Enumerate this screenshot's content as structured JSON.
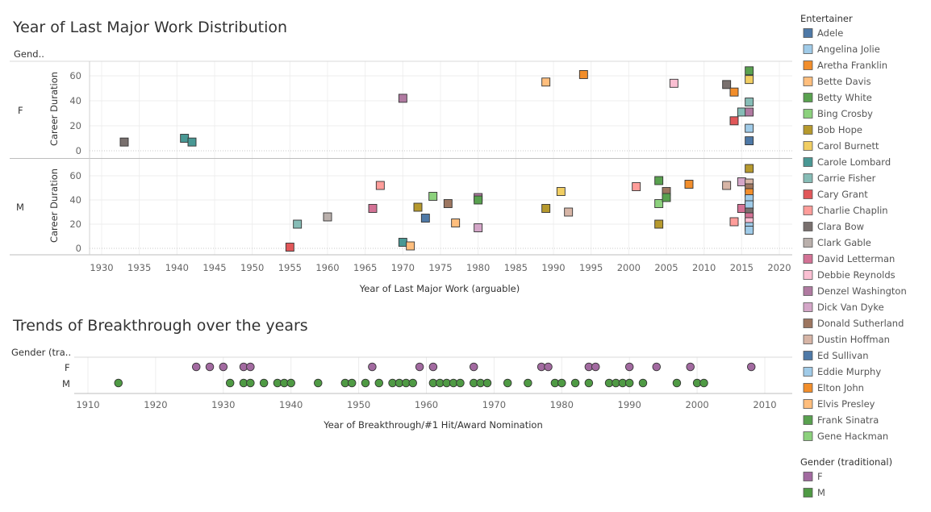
{
  "colors": {
    "Adele": "#4e79a7",
    "Angelina Jolie": "#a0cbe8",
    "Aretha Franklin": "#f28e2b",
    "Bette Davis": "#ffbe7d",
    "Betty White": "#59a14f",
    "Bing Crosby": "#8cd17d",
    "Bob Hope": "#b6992d",
    "Carol Burnett": "#f1ce63",
    "Carole Lombard": "#499894",
    "Carrie Fisher": "#86bcb6",
    "Cary Grant": "#e15759",
    "Charlie Chaplin": "#ff9d9a",
    "Clara Bow": "#79706e",
    "Clark Gable": "#bab0ac",
    "David Letterman": "#d37295",
    "Debbie Reynolds": "#fabfd2",
    "Denzel Washington": "#b07aa1",
    "Dick Van Dyke": "#d4a6c8",
    "Donald Sutherland": "#9d7660",
    "Dustin Hoffman": "#d7b5a6",
    "Ed Sullivan": "#4e79a7",
    "Eddie Murphy": "#a0cbe8",
    "Elton John": "#f28e2b",
    "Elvis Presley": "#ffbe7d",
    "Frank Sinatra": "#59a14f",
    "Gene Hackman": "#8cd17d",
    "gender_F": "#a26aa0",
    "gender_M": "#4f9a44"
  },
  "chart_data": [
    {
      "type": "scatter",
      "title": "Year of Last Major Work Distribution",
      "row_header": "Gend..",
      "xlabel": "Year of Last Major Work (arguable)",
      "ylabel": "Career Duration",
      "xlim": [
        1927,
        2022
      ],
      "x_ticks": [
        1930,
        1935,
        1940,
        1945,
        1950,
        1955,
        1960,
        1965,
        1970,
        1975,
        1980,
        1985,
        1990,
        1995,
        2000,
        2005,
        2010,
        2015,
        2020
      ],
      "y_ticks": [
        0,
        20,
        40,
        60
      ],
      "ylim": [
        -3,
        72
      ],
      "grid": true,
      "panels": [
        {
          "label": "F",
          "points": [
            {
              "x": 1933,
              "y": 7,
              "c": "Clara Bow"
            },
            {
              "x": 1941,
              "y": 10,
              "c": "Carole Lombard"
            },
            {
              "x": 1942,
              "y": 7,
              "c": "Carole Lombard"
            },
            {
              "x": 1970,
              "y": 42,
              "c": "Denzel Washington"
            },
            {
              "x": 1989,
              "y": 55,
              "c": "Bette Davis"
            },
            {
              "x": 1994,
              "y": 61,
              "c": "Aretha Franklin"
            },
            {
              "x": 2006,
              "y": 54,
              "c": "Debbie Reynolds"
            },
            {
              "x": 2013,
              "y": 53,
              "c": "Clara Bow"
            },
            {
              "x": 2014,
              "y": 47,
              "c": "Aretha Franklin"
            },
            {
              "x": 2014,
              "y": 24,
              "c": "Cary Grant"
            },
            {
              "x": 2015,
              "y": 31,
              "c": "Carrie Fisher"
            },
            {
              "x": 2016,
              "y": 64,
              "c": "Betty White"
            },
            {
              "x": 2016,
              "y": 57,
              "c": "Carol Burnett"
            },
            {
              "x": 2016,
              "y": 39,
              "c": "Carrie Fisher"
            },
            {
              "x": 2016,
              "y": 31,
              "c": "Denzel Washington"
            },
            {
              "x": 2016,
              "y": 18,
              "c": "Angelina Jolie"
            },
            {
              "x": 2016,
              "y": 8,
              "c": "Adele"
            }
          ]
        },
        {
          "label": "M",
          "points": [
            {
              "x": 1955,
              "y": 1,
              "c": "Cary Grant"
            },
            {
              "x": 1956,
              "y": 20,
              "c": "Carrie Fisher"
            },
            {
              "x": 1960,
              "y": 26,
              "c": "Clark Gable"
            },
            {
              "x": 1966,
              "y": 33,
              "c": "David Letterman"
            },
            {
              "x": 1967,
              "y": 52,
              "c": "Charlie Chaplin"
            },
            {
              "x": 1970,
              "y": 5,
              "c": "Carole Lombard"
            },
            {
              "x": 1971,
              "y": 2,
              "c": "Elvis Presley"
            },
            {
              "x": 1972,
              "y": 34,
              "c": "Bob Hope"
            },
            {
              "x": 1973,
              "y": 25,
              "c": "Ed Sullivan"
            },
            {
              "x": 1974,
              "y": 43,
              "c": "Gene Hackman"
            },
            {
              "x": 1976,
              "y": 37,
              "c": "Donald Sutherland"
            },
            {
              "x": 1977,
              "y": 21,
              "c": "Elvis Presley"
            },
            {
              "x": 1980,
              "y": 42,
              "c": "Denzel Washington"
            },
            {
              "x": 1980,
              "y": 40,
              "c": "Frank Sinatra"
            },
            {
              "x": 1980,
              "y": 17,
              "c": "Dick Van Dyke"
            },
            {
              "x": 1989,
              "y": 33,
              "c": "Bob Hope"
            },
            {
              "x": 1991,
              "y": 47,
              "c": "Carol Burnett"
            },
            {
              "x": 1992,
              "y": 30,
              "c": "Dustin Hoffman"
            },
            {
              "x": 2001,
              "y": 51,
              "c": "Charlie Chaplin"
            },
            {
              "x": 2004,
              "y": 56,
              "c": "Frank Sinatra"
            },
            {
              "x": 2004,
              "y": 37,
              "c": "Gene Hackman"
            },
            {
              "x": 2004,
              "y": 20,
              "c": "Bob Hope"
            },
            {
              "x": 2005,
              "y": 47,
              "c": "Donald Sutherland"
            },
            {
              "x": 2005,
              "y": 42,
              "c": "Frank Sinatra"
            },
            {
              "x": 2008,
              "y": 53,
              "c": "Aretha Franklin"
            },
            {
              "x": 2013,
              "y": 52,
              "c": "Dustin Hoffman"
            },
            {
              "x": 2014,
              "y": 22,
              "c": "Charlie Chaplin"
            },
            {
              "x": 2015,
              "y": 55,
              "c": "Dick Van Dyke"
            },
            {
              "x": 2015,
              "y": 33,
              "c": "David Letterman"
            },
            {
              "x": 2016,
              "y": 66,
              "c": "Bob Hope"
            },
            {
              "x": 2016,
              "y": 54,
              "c": "Dustin Hoffman"
            },
            {
              "x": 2016,
              "y": 50,
              "c": "Donald Sutherland"
            },
            {
              "x": 2016,
              "y": 46,
              "c": "Elton John"
            },
            {
              "x": 2016,
              "y": 41,
              "c": "Eddie Murphy"
            },
            {
              "x": 2016,
              "y": 36,
              "c": "Eddie Murphy"
            },
            {
              "x": 2016,
              "y": 30,
              "c": "Clara Bow"
            },
            {
              "x": 2016,
              "y": 26,
              "c": "David Letterman"
            },
            {
              "x": 2016,
              "y": 22,
              "c": "Debbie Reynolds"
            },
            {
              "x": 2016,
              "y": 18,
              "c": "Eddie Murphy"
            },
            {
              "x": 2016,
              "y": 15,
              "c": "Angelina Jolie"
            }
          ]
        }
      ]
    },
    {
      "type": "scatter",
      "title": "Trends of Breakthrough over the years",
      "row_header": "Gender (tra..",
      "xlabel": "Year of Breakthrough/#1 Hit/Award Nomination",
      "xlim": [
        1908,
        2012
      ],
      "x_ticks": [
        1910,
        1920,
        1930,
        1940,
        1950,
        1960,
        1970,
        1980,
        1990,
        2000,
        2010
      ],
      "grid": true,
      "rows": [
        {
          "label": "F",
          "x": [
            1926,
            1928,
            1930,
            1933,
            1934,
            1952,
            1959,
            1961,
            1967,
            1977,
            1978,
            1984,
            1985,
            1990,
            1994,
            1999,
            2008
          ]
        },
        {
          "label": "M",
          "x": [
            1914.5,
            1931,
            1933,
            1934,
            1936,
            1938,
            1939,
            1940,
            1944,
            1948,
            1949,
            1951,
            1953,
            1955,
            1956,
            1957,
            1958,
            1961,
            1962,
            1963,
            1964,
            1965,
            1967,
            1968,
            1969,
            1972,
            1975,
            1979,
            1980,
            1982,
            1984,
            1987,
            1988,
            1989,
            1990,
            1992,
            1997,
            2000,
            2001
          ]
        }
      ]
    }
  ],
  "legend": {
    "title": "Entertainer",
    "items": [
      "Adele",
      "Angelina Jolie",
      "Aretha Franklin",
      "Bette Davis",
      "Betty White",
      "Bing Crosby",
      "Bob Hope",
      "Carol Burnett",
      "Carole Lombard",
      "Carrie Fisher",
      "Cary Grant",
      "Charlie Chaplin",
      "Clara Bow",
      "Clark Gable",
      "David Letterman",
      "Debbie Reynolds",
      "Denzel Washington",
      "Dick Van Dyke",
      "Donald Sutherland",
      "Dustin Hoffman",
      "Ed Sullivan",
      "Eddie Murphy",
      "Elton John",
      "Elvis Presley",
      "Frank Sinatra",
      "Gene Hackman"
    ]
  },
  "legend_gender": {
    "title": "Gender (traditional)",
    "items": [
      "F",
      "M"
    ]
  }
}
